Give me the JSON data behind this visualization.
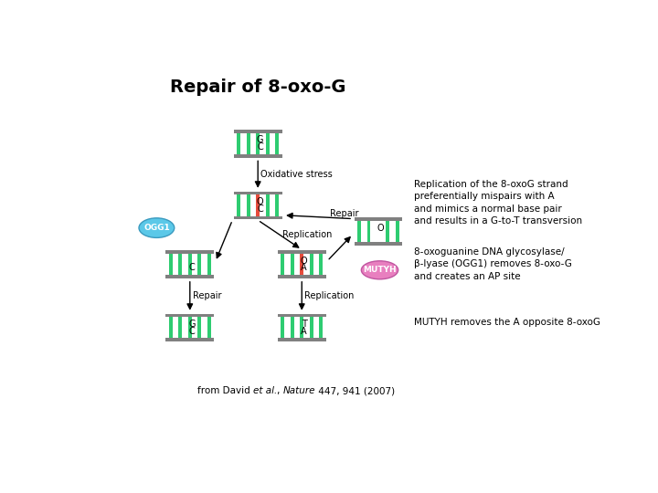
{
  "title": "Repair of 8-oxo-G",
  "title_fontsize": 14,
  "title_bold": true,
  "background_color": "#ffffff",
  "annotations": {
    "right_top": "Replication of the 8-oxoG strand\npreferentially mispairs with A\nand mimics a normal base pair\nand results in a G-to-T transversion",
    "right_mid": "8-oxoguanine DNA glycosylase/\nβ-lyase (OGG1) removes 8-oxo-G\nand creates an AP site",
    "right_bot": "MUTYH removes the A opposite 8-oxoG"
  },
  "labels": {
    "oxidative_stress": "Oxidative stress",
    "replication1": "Replication",
    "repair1": "Repair",
    "repair2": "Repair",
    "replication2": "Replication",
    "ogg1": "OGG1",
    "mutyh": "MUTYH"
  },
  "citation_parts": [
    [
      "from David ",
      false
    ],
    [
      "et al.",
      true
    ],
    [
      ", ",
      false
    ],
    [
      "Nature",
      true
    ],
    [
      " 447, 941 (2007)",
      false
    ]
  ]
}
